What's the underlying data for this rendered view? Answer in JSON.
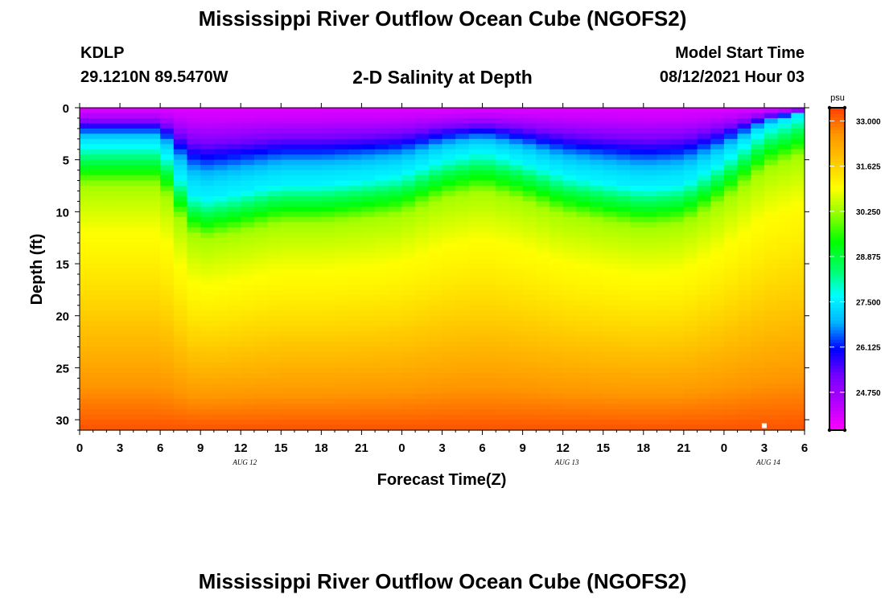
{
  "header": {
    "title": "Mississippi River Outflow Ocean Cube (NGOFS2)",
    "station_id": "KDLP",
    "station_coords": "29.1210N  89.5470W",
    "subtitle": "2-D Salinity at Depth",
    "model_label": "Model Start Time",
    "model_time": "08/12/2021 Hour 03"
  },
  "footer": {
    "title": "Mississippi River Outflow Ocean Cube (NGOFS2)"
  },
  "chart_data": {
    "type": "heatmap",
    "title": "2-D Salinity at Depth",
    "xlabel": "Forecast Time(Z)",
    "ylabel": "Depth (ft)",
    "x_hours": [
      0,
      54
    ],
    "x_tick_labels": [
      "0",
      "3",
      "6",
      "9",
      "12",
      "15",
      "18",
      "21",
      "0",
      "3",
      "6",
      "9",
      "12",
      "15",
      "18",
      "21",
      "0",
      "3",
      "6"
    ],
    "date_labels": [
      {
        "label": "AUG 12",
        "hour": 12
      },
      {
        "label": "AUG 13",
        "hour": 36
      },
      {
        "label": "AUG 14",
        "hour": 51
      }
    ],
    "ylim": [
      0,
      31
    ],
    "y_tick_labels": [
      "0",
      "5",
      "10",
      "15",
      "20",
      "25",
      "30"
    ],
    "y_ticks": [
      0,
      5,
      10,
      15,
      20,
      25,
      30
    ],
    "colorbar": {
      "unit": "psu",
      "range": [
        23.6,
        33.4
      ],
      "tick_values": [
        33.0,
        31.625,
        30.25,
        28.875,
        27.5,
        26.125,
        24.75
      ],
      "tick_labels": [
        "33.000",
        "31.625",
        "30.250",
        "28.875",
        "27.500",
        "26.125",
        "24.750"
      ],
      "colors": [
        "#ff00ff",
        "#b400ff",
        "#7800ff",
        "#0000ff",
        "#00b4ff",
        "#00ffff",
        "#00ff64",
        "#00ff00",
        "#8cff00",
        "#ffff00",
        "#ffc800",
        "#ff9600",
        "#ff3c00"
      ]
    },
    "surface_salinity_psu": 24.0,
    "bottom_salinity_psu": 33.2,
    "halocline_depth_ft": {
      "hours": [
        0,
        6,
        7,
        8,
        9,
        12,
        15,
        18,
        21,
        24,
        27,
        30,
        33,
        36,
        39,
        42,
        45,
        48,
        51,
        54
      ],
      "depth": [
        3.5,
        3.5,
        5.5,
        7.8,
        8.7,
        8.0,
        7.2,
        7.2,
        6.8,
        6.3,
        4.8,
        4.0,
        5.0,
        6.3,
        7.0,
        7.6,
        7.2,
        5.0,
        2.0,
        0.5
      ]
    },
    "marker": {
      "hour": 51,
      "depth_ft": 30.5
    }
  }
}
